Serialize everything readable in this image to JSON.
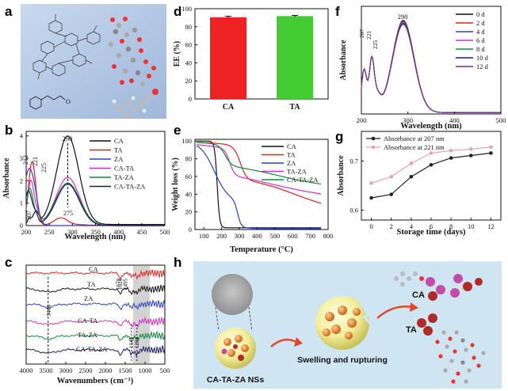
{
  "panels": {
    "a": "a",
    "b": "b",
    "c": "c",
    "d": "d",
    "e": "e",
    "f": "f",
    "g": "g",
    "h": "h"
  },
  "molecule_label": "O",
  "chart_data": [
    {
      "id": "b",
      "type": "line",
      "xlabel": "Wavelength (nm)",
      "ylabel": "Absorbance",
      "xlim": [
        200,
        500
      ],
      "ylim": [
        0,
        4
      ],
      "xticks": [
        "200",
        "250",
        "300",
        "350",
        "400",
        "450",
        "500"
      ],
      "yticks": [
        "0",
        "1",
        "2",
        "3",
        "4"
      ],
      "legend": [
        "CA",
        "TA",
        "ZA",
        "CA-TA",
        "TA-ZA",
        "CA-TA-ZA"
      ],
      "colors": [
        "#111111",
        "#e02020",
        "#2a3fc0",
        "#d030c0",
        "#108a3a",
        "#1a1a5c"
      ],
      "annotations": [
        "290",
        "213",
        "221",
        "225",
        "207",
        "275"
      ]
    },
    {
      "id": "c",
      "type": "line",
      "xlabel": "Wavenumbers (cm⁻¹)",
      "ylabel": "",
      "xlim": [
        4000,
        500
      ],
      "xticks": [
        "4000",
        "3500",
        "3000",
        "2500",
        "2000",
        "1500",
        "1000",
        "500"
      ],
      "series_labels": [
        "CA",
        "TA",
        "ZA",
        "CA-TA",
        "TA-ZA",
        "CA-TA-ZA"
      ],
      "colors": [
        "#e02020",
        "#111111",
        "#2a3fc0",
        "#d030c0",
        "#108a3a",
        "#1a1a5c"
      ],
      "annotations": [
        "3445",
        "1670",
        "1624",
        "1495",
        "1342",
        "1204"
      ]
    },
    {
      "id": "d",
      "type": "bar",
      "xlabel": "",
      "ylabel": "EE (%)",
      "categories": [
        "CA",
        "TA"
      ],
      "values": [
        90.5,
        91.8
      ],
      "errors": [
        1.2,
        0.8
      ],
      "ylim": [
        0,
        100
      ],
      "yticks": [
        "0",
        "20",
        "40",
        "60",
        "80",
        "100"
      ],
      "colors": [
        "#ee2222",
        "#44cc33"
      ]
    },
    {
      "id": "e",
      "type": "line",
      "xlabel": "Temperature (°C)",
      "ylabel": "Weight loss (%)",
      "xlim": [
        50,
        800
      ],
      "ylim": [
        0,
        100
      ],
      "xticks": [
        "100",
        "200",
        "300",
        "400",
        "500",
        "600",
        "700",
        "800"
      ],
      "yticks": [
        "0",
        "20",
        "40",
        "60",
        "80",
        "100"
      ],
      "legend": [
        "CA",
        "TA",
        "ZA",
        "TA-ZA",
        "CA-TA-ZA"
      ],
      "colors": [
        "#111111",
        "#e02020",
        "#2a3fc0",
        "#d030c0",
        "#108a3a"
      ]
    },
    {
      "id": "f",
      "type": "line",
      "xlabel": "Wavelength (nm)",
      "ylabel": "Absorbance",
      "xlim": [
        200,
        500
      ],
      "xticks": [
        "200",
        "300",
        "400",
        "500"
      ],
      "legend": [
        "0  d",
        "2  d",
        "4  d",
        "6  d",
        "8  d",
        "10 d",
        "12 d"
      ],
      "colors": [
        "#111111",
        "#e02020",
        "#2a3fc0",
        "#d030c0",
        "#108a3a",
        "#1a1a80",
        "#7a2a8a"
      ],
      "annotations": [
        "290",
        "207",
        "221",
        "225"
      ]
    },
    {
      "id": "g",
      "type": "line",
      "xlabel": "Storage time (days)",
      "ylabel": "Absorbance",
      "x": [
        0,
        2,
        4,
        6,
        8,
        10,
        12
      ],
      "xlim": [
        -1,
        13
      ],
      "ylim": [
        0.58,
        0.76
      ],
      "xticks": [
        "0",
        "2",
        "4",
        "6",
        "8",
        "10",
        "12"
      ],
      "yticks": [
        "0.6",
        "0.7"
      ],
      "series": [
        {
          "name": "Absorbance at 207 nm",
          "values": [
            0.625,
            0.632,
            0.668,
            0.692,
            0.706,
            0.711,
            0.716
          ],
          "color": "#222222"
        },
        {
          "name": "Absorbance at 221 nm",
          "values": [
            0.655,
            0.668,
            0.695,
            0.716,
            0.721,
            0.724,
            0.728
          ],
          "color": "#e8a0b0"
        }
      ]
    }
  ],
  "schematic": {
    "nanoparticle_label": "CA-TA-ZA NSs",
    "process_label": "Swelling and rupturing",
    "ca_label": "CA",
    "ta_label": "TA"
  }
}
